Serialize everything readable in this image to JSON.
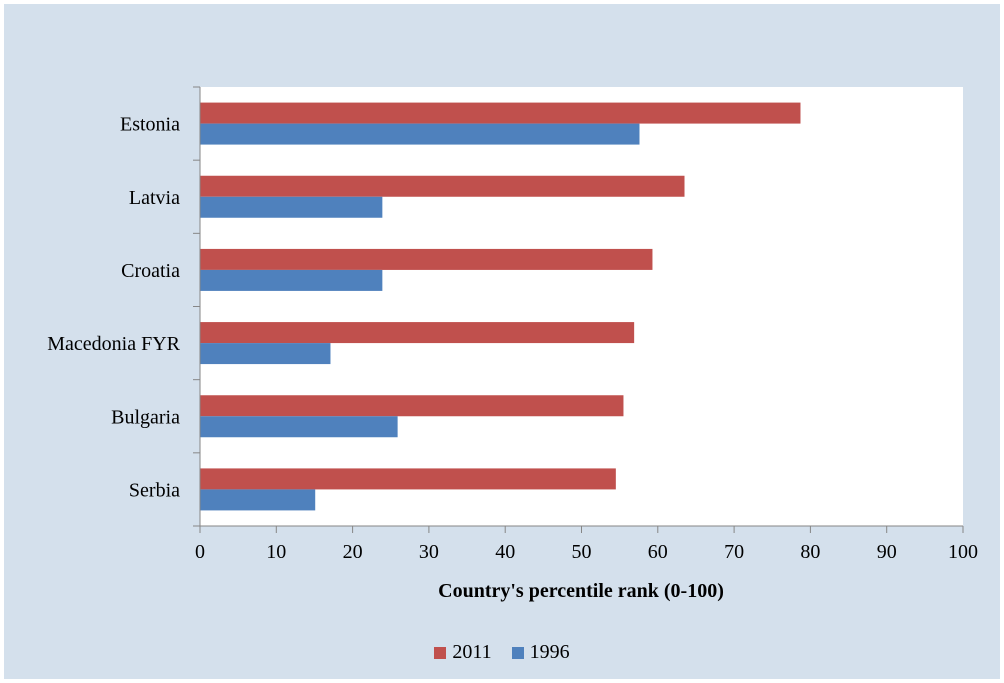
{
  "chart_data": {
    "type": "bar",
    "orientation": "horizontal",
    "categories": [
      "Estonia",
      "Latvia",
      "Croatia",
      "Macedonia FYR",
      "Bulgaria",
      "Serbia"
    ],
    "series": [
      {
        "name": "2011",
        "color": "#c0504d",
        "values": [
          78.7,
          63.5,
          59.3,
          56.9,
          55.5,
          54.5
        ]
      },
      {
        "name": "1996",
        "color": "#4f81bd",
        "values": [
          57.6,
          23.9,
          23.9,
          17.1,
          25.9,
          15.1
        ]
      }
    ],
    "xlabel": "Country's percentile rank (0-100)",
    "ylabel": "",
    "xlim": [
      0,
      100
    ],
    "xticks": [
      "0",
      "10",
      "20",
      "30",
      "40",
      "50",
      "60",
      "70",
      "80",
      "90",
      "100"
    ],
    "grid": false,
    "legend_position": "bottom"
  }
}
